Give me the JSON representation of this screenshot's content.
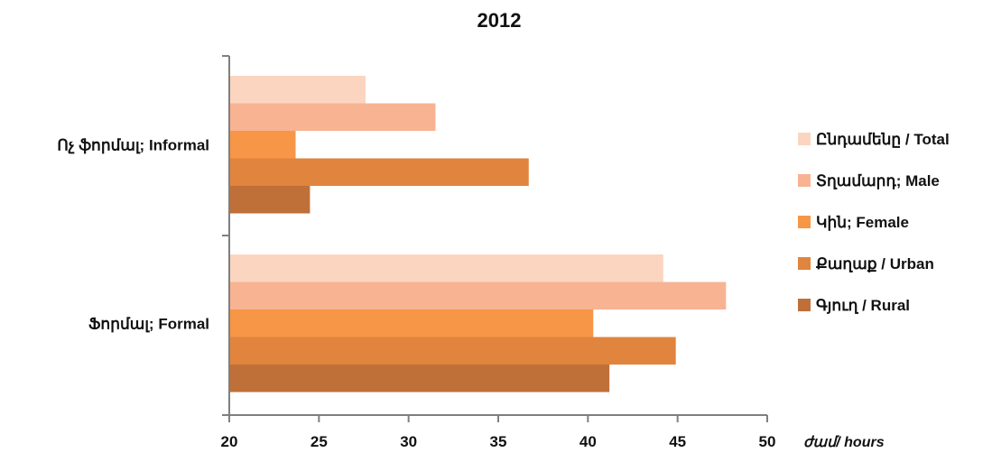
{
  "chart_data": {
    "type": "bar",
    "orientation": "horizontal",
    "title": "2012",
    "xlabel": "ժամ/ hours",
    "ylabel": "",
    "xlim": [
      20,
      50
    ],
    "xticks": [
      20,
      25,
      30,
      35,
      40,
      45,
      50
    ],
    "grid": false,
    "legend_position": "right",
    "categories": [
      "Ոչ ֆորմալ; Informal",
      "Ֆորմալ; Formal"
    ],
    "series": [
      {
        "name": "Ընդամենը / Total",
        "color": "#fbd5c0",
        "values": [
          27.6,
          44.2
        ]
      },
      {
        "name": "Տղամարդ; Male",
        "color": "#f8b393",
        "values": [
          31.5,
          47.7
        ]
      },
      {
        "name": "Կին; Female",
        "color": "#f79646",
        "values": [
          23.7,
          40.3
        ]
      },
      {
        "name": "Քաղաք / Urban",
        "color": "#e0843e",
        "values": [
          36.7,
          44.9
        ]
      },
      {
        "name": "Գյուղ / Rural",
        "color": "#bf7038",
        "values": [
          24.5,
          41.2
        ]
      }
    ]
  }
}
